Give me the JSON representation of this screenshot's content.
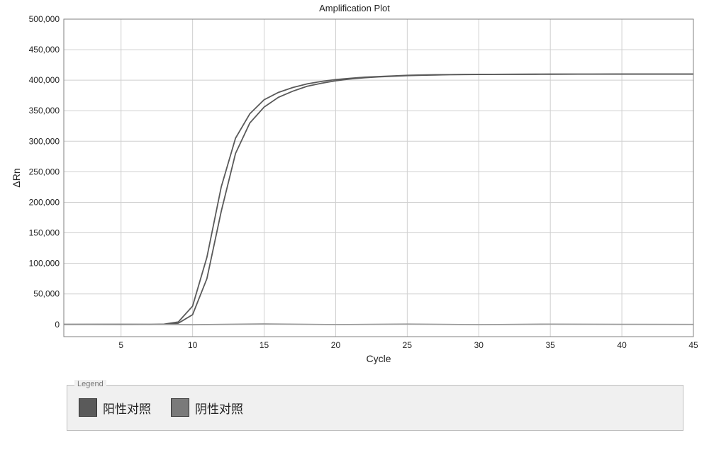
{
  "chart": {
    "type": "line",
    "title": "Amplification Plot",
    "title_fontsize": 13,
    "xlabel": "Cycle",
    "ylabel": "ΔRn",
    "label_fontsize": 14,
    "tick_fontsize": 12,
    "xlim": [
      1,
      45
    ],
    "ylim": [
      -20000,
      500000
    ],
    "x_ticks": [
      5,
      10,
      15,
      20,
      25,
      30,
      35,
      40,
      45
    ],
    "y_ticks": [
      0,
      50000,
      100000,
      150000,
      200000,
      250000,
      300000,
      350000,
      400000,
      450000,
      500000
    ],
    "y_tick_labels": [
      "0",
      "50,000",
      "100,000",
      "150,000",
      "200,000",
      "250,000",
      "300,000",
      "350,000",
      "400,000",
      "450,000",
      "500,000"
    ],
    "background_color": "#ffffff",
    "plot_border_color": "#808080",
    "grid_color": "#cfcfcf",
    "grid_linewidth": 1,
    "show_grid": true,
    "line_width": 1.8,
    "series": [
      {
        "name": "positive_a",
        "color": "#5a5a5a",
        "x": [
          1,
          2,
          3,
          4,
          5,
          6,
          7,
          8,
          9,
          10,
          11,
          12,
          13,
          14,
          15,
          16,
          17,
          18,
          19,
          20,
          21,
          22,
          23,
          24,
          25,
          26,
          27,
          28,
          29,
          30,
          31,
          32,
          33,
          34,
          35,
          36,
          37,
          38,
          39,
          40,
          41,
          42,
          43,
          44,
          45
        ],
        "y": [
          0,
          0,
          0,
          0,
          0,
          0,
          0,
          500,
          4000,
          30000,
          110000,
          225000,
          305000,
          345000,
          368000,
          380000,
          388000,
          394000,
          398000,
          401000,
          403000,
          405000,
          406000,
          407000,
          408000,
          408500,
          409000,
          409200,
          409400,
          409500,
          409600,
          409700,
          409700,
          409800,
          409800,
          409900,
          409900,
          409900,
          410000,
          410000,
          410000,
          410000,
          410000,
          410000,
          410000
        ]
      },
      {
        "name": "positive_b",
        "color": "#5a5a5a",
        "x": [
          1,
          2,
          3,
          4,
          5,
          6,
          7,
          8,
          9,
          10,
          11,
          12,
          13,
          14,
          15,
          16,
          17,
          18,
          19,
          20,
          21,
          22,
          23,
          24,
          25,
          26,
          27,
          28,
          29,
          30,
          31,
          32,
          33,
          34,
          35,
          36,
          37,
          38,
          39,
          40,
          41,
          42,
          43,
          44,
          45
        ],
        "y": [
          0,
          0,
          0,
          0,
          0,
          0,
          0,
          200,
          2000,
          16000,
          75000,
          185000,
          280000,
          330000,
          356000,
          372000,
          382000,
          390000,
          395000,
          399000,
          402000,
          404000,
          405500,
          406500,
          407500,
          408000,
          408500,
          409000,
          409200,
          409400,
          409500,
          409600,
          409700,
          409700,
          409800,
          409800,
          409900,
          409900,
          409900,
          410000,
          410000,
          410000,
          410000,
          410000,
          410000
        ]
      },
      {
        "name": "negative",
        "color": "#9a9a9a",
        "x": [
          1,
          5,
          10,
          15,
          20,
          25,
          30,
          35,
          40,
          45
        ],
        "y": [
          0,
          500,
          -500,
          800,
          -300,
          600,
          -400,
          500,
          200,
          0
        ]
      }
    ]
  },
  "legend": {
    "title": "Legend",
    "items": [
      {
        "label": "阳性对照",
        "swatch_color": "#5a5a5a"
      },
      {
        "label": "阴性对照",
        "swatch_color": "#7a7a7a"
      }
    ]
  },
  "legend_background": "#f0f0f0",
  "legend_border_color": "#bfbfbf"
}
